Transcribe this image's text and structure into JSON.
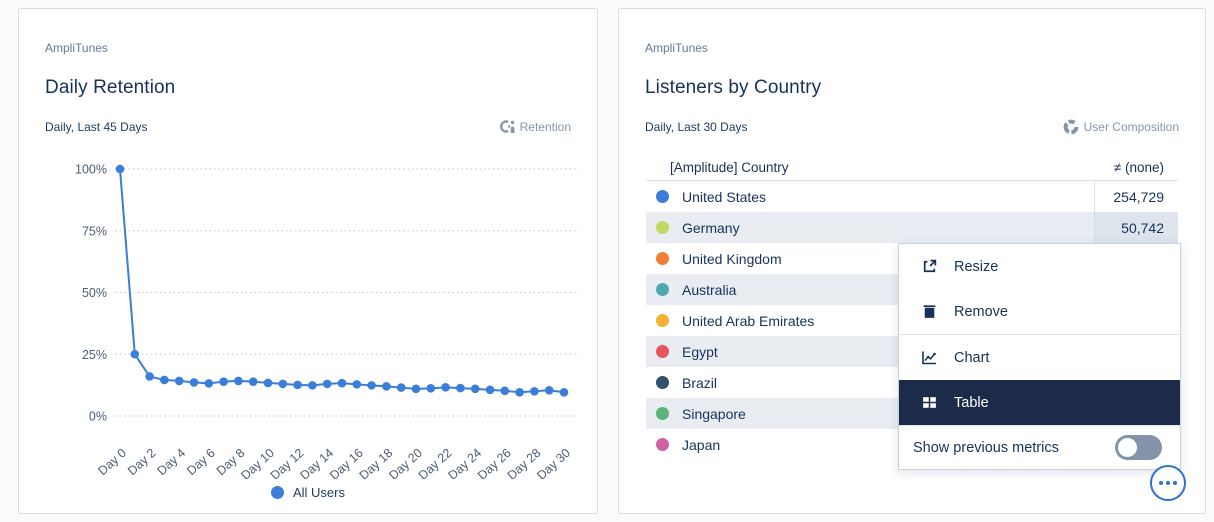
{
  "left_card": {
    "app_label": "AmpliTunes",
    "title": "Daily Retention",
    "subtitle": "Daily, Last 45 Days",
    "chart_type_label": "Retention",
    "legend_label": "All Users",
    "legend_color": "#3b7ed8"
  },
  "right_card": {
    "app_label": "AmpliTunes",
    "title": "Listeners by Country",
    "subtitle": "Daily, Last 30 Days",
    "chart_type_label": "User Composition",
    "table_header": {
      "country": "[Amplitude] Country",
      "value": "≠ (none)"
    }
  },
  "chart_data": [
    {
      "type": "line",
      "title": "Daily Retention",
      "x": [
        "Day 0",
        "Day 1",
        "Day 2",
        "Day 3",
        "Day 4",
        "Day 5",
        "Day 6",
        "Day 7",
        "Day 8",
        "Day 9",
        "Day 10",
        "Day 11",
        "Day 12",
        "Day 13",
        "Day 14",
        "Day 15",
        "Day 16",
        "Day 17",
        "Day 18",
        "Day 19",
        "Day 20",
        "Day 21",
        "Day 22",
        "Day 23",
        "Day 24",
        "Day 25",
        "Day 26",
        "Day 27",
        "Day 28",
        "Day 29",
        "Day 30"
      ],
      "series": [
        {
          "name": "All Users",
          "color": "#3b7ed8",
          "values": [
            100,
            25,
            16,
            14.6,
            14.2,
            13.6,
            13.2,
            13.9,
            14.2,
            13.9,
            13.4,
            13.0,
            12.6,
            12.4,
            13.0,
            13.3,
            12.8,
            12.4,
            12.0,
            11.5,
            11.0,
            11.2,
            11.6,
            11.3,
            11.0,
            10.6,
            10.2,
            9.6,
            10.0,
            10.4,
            9.6
          ]
        }
      ],
      "xlabel": "",
      "ylabel": "",
      "ylim": [
        0,
        100
      ],
      "yticks": [
        0,
        25,
        50,
        75,
        100
      ],
      "ytick_labels": [
        "0%",
        "25%",
        "50%",
        "75%",
        "100%"
      ],
      "xtick_every": 2,
      "grid": "horizontal-dotted",
      "legend_position": "bottom"
    },
    {
      "type": "table",
      "title": "Listeners by Country",
      "columns": [
        "[Amplitude] Country",
        "≠ (none)"
      ],
      "rows": [
        {
          "label": "United States",
          "color": "#3b7ed8",
          "value": "254,729"
        },
        {
          "label": "Germany",
          "color": "#c3d962",
          "value": "50,742"
        },
        {
          "label": "United Kingdom",
          "color": "#ef8036",
          "value": ""
        },
        {
          "label": "Australia",
          "color": "#4fa8ab",
          "value": ""
        },
        {
          "label": "United Arab Emirates",
          "color": "#f2b233",
          "value": ""
        },
        {
          "label": "Egypt",
          "color": "#e85560",
          "value": ""
        },
        {
          "label": "Brazil",
          "color": "#33516b",
          "value": ""
        },
        {
          "label": "Singapore",
          "color": "#5cb479",
          "value": ""
        },
        {
          "label": "Japan",
          "color": "#cf62a4",
          "value": ""
        }
      ]
    }
  ],
  "context_menu": {
    "items": [
      {
        "label": "Resize",
        "icon": "resize-icon",
        "selected": false
      },
      {
        "label": "Remove",
        "icon": "trash-icon",
        "selected": false
      },
      {
        "label": "Chart",
        "icon": "chart-icon",
        "selected": false
      },
      {
        "label": "Table",
        "icon": "table-icon",
        "selected": true
      }
    ],
    "toggle_label": "Show previous metrics",
    "toggle_state": "off",
    "selected_bg": "#1c2b4a"
  },
  "colors": {
    "accent_blue": "#3b7ed8",
    "navy_text": "#16325c",
    "muted_gray": "#8795a9",
    "grid_line": "#c8cdd6",
    "alt_row": "#e9edf2",
    "alt_value_cell": "#dee4ec",
    "card_border": "#d6dce4",
    "toggle_off": "#8593a8"
  }
}
